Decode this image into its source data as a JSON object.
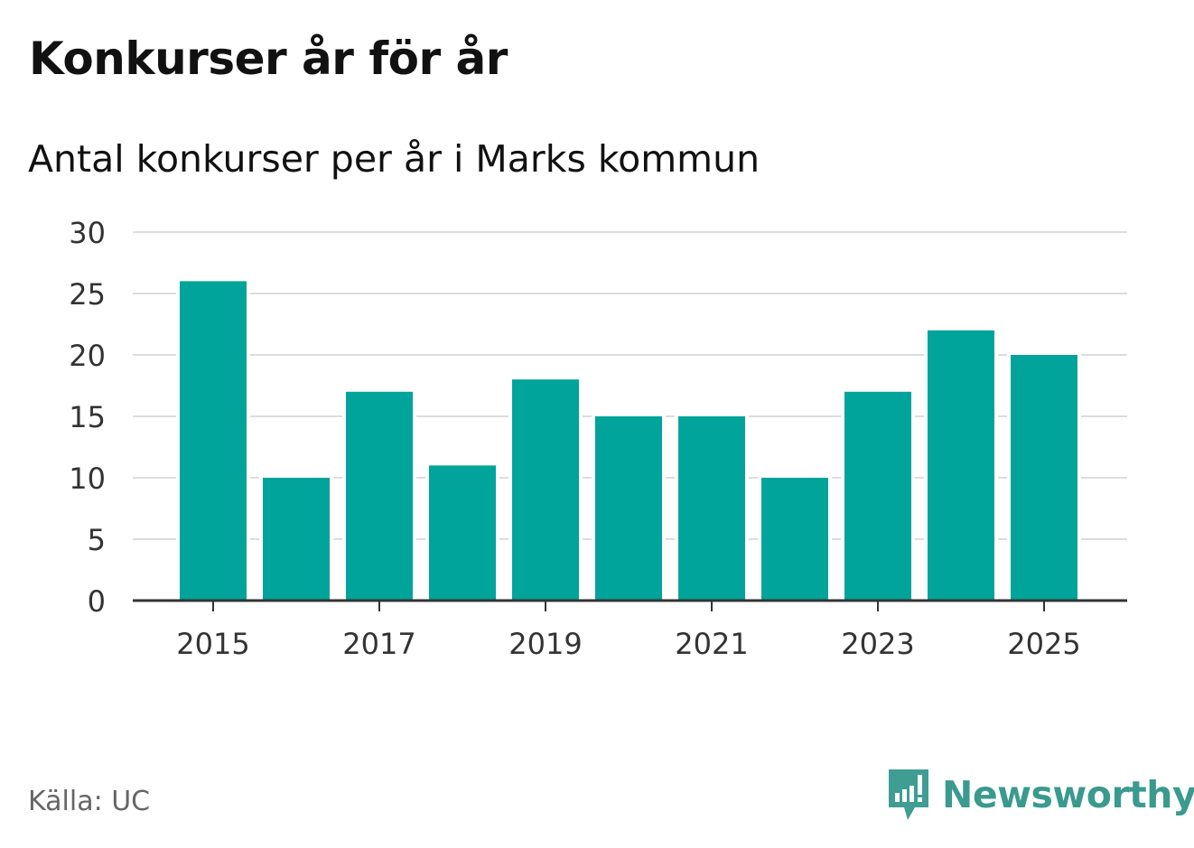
{
  "chart_data": {
    "type": "bar",
    "title": "Konkurser år för år",
    "subtitle": "Antal konkurser per år i Marks kommun",
    "categories": [
      "2015",
      "2016",
      "2017",
      "2018",
      "2019",
      "2020",
      "2021",
      "2022",
      "2023",
      "2024",
      "2025"
    ],
    "values": [
      26,
      10,
      17,
      11,
      18,
      15,
      15,
      10,
      17,
      22,
      20
    ],
    "x_tick_labels": [
      "2015",
      "2017",
      "2019",
      "2021",
      "2023",
      "2025"
    ],
    "y_ticks": [
      0,
      5,
      10,
      15,
      20,
      25,
      30
    ],
    "ylim": [
      0,
      30
    ],
    "xlabel": "",
    "ylabel": "",
    "grid": true,
    "bar_color": "#00a49a"
  },
  "source": "Källa: UC",
  "logo": {
    "text": "Newsworthy",
    "color": "#3a9a8e"
  }
}
